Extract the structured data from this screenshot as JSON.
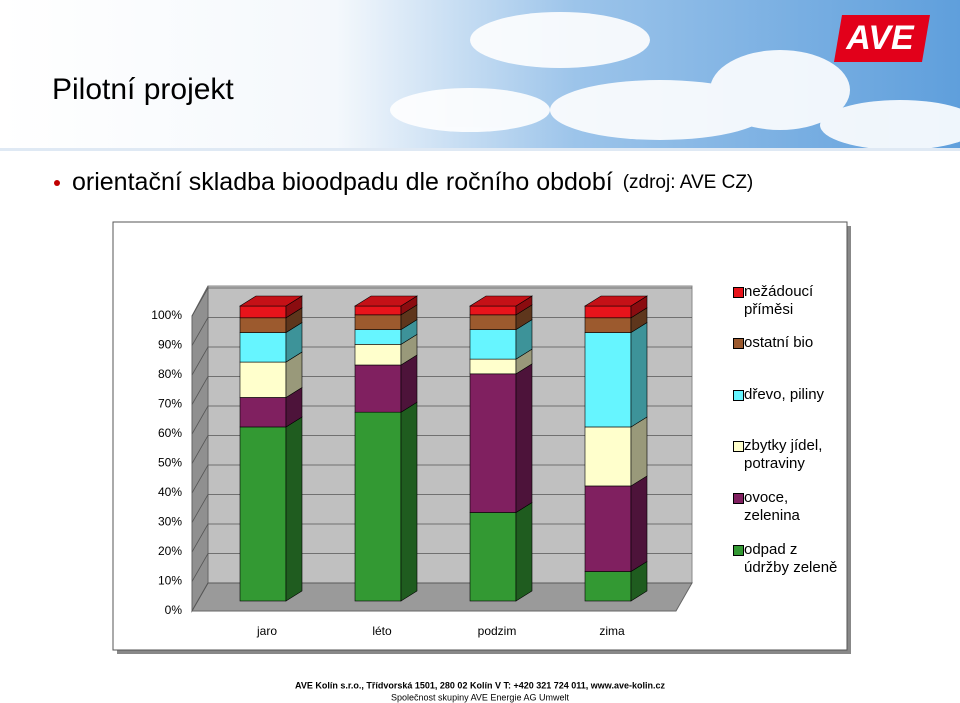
{
  "slide": {
    "title": "Pilotní projekt",
    "bullet": "orientační skladba bioodpadu dle ročního období",
    "source": "(zdroj: AVE CZ)",
    "logo": "AVE",
    "footer": [
      "AVE Kolín s.r.o., Třídvorská 1501, 280 02 Kolín V T: +420 321 724 011, www.ave-kolin.cz",
      "Společnost skupiny AVE Energie AG Umwelt"
    ]
  },
  "chart_data": {
    "type": "stacked-bar-3d",
    "categories": [
      "jaro",
      "léto",
      "podzim",
      "zima"
    ],
    "series": [
      {
        "name": "odpad z údržby zeleně",
        "color": "#339933",
        "values": [
          59,
          64,
          30,
          10
        ]
      },
      {
        "name": "ovoce, zelenina",
        "color": "#802060",
        "values": [
          10,
          16,
          47,
          29
        ]
      },
      {
        "name": "zbytky jídel, potraviny",
        "color": "#ffffcc",
        "values": [
          12,
          7,
          5,
          20
        ]
      },
      {
        "name": "dřevo, piliny",
        "color": "#66f5ff",
        "values": [
          10,
          5,
          10,
          32
        ]
      },
      {
        "name": "ostatní bio",
        "color": "#9c5a2e",
        "values": [
          5,
          5,
          5,
          5
        ]
      },
      {
        "name": "nežádoucí příměsi",
        "color": "#e8141b",
        "values": [
          4,
          3,
          3,
          4
        ]
      }
    ],
    "ylim": [
      0,
      100
    ],
    "yticks": [
      {
        "value": 0,
        "label": "0%"
      },
      {
        "value": 10,
        "label": "10%"
      },
      {
        "value": 20,
        "label": "20%"
      },
      {
        "value": 30,
        "label": "30%"
      },
      {
        "value": 40,
        "label": "40%"
      },
      {
        "value": 50,
        "label": "50%"
      },
      {
        "value": 60,
        "label": "60%"
      },
      {
        "value": 70,
        "label": "70%"
      },
      {
        "value": 80,
        "label": "80%"
      },
      {
        "value": 90,
        "label": "90%"
      },
      {
        "value": 100,
        "label": "100%"
      }
    ],
    "grid": true
  }
}
